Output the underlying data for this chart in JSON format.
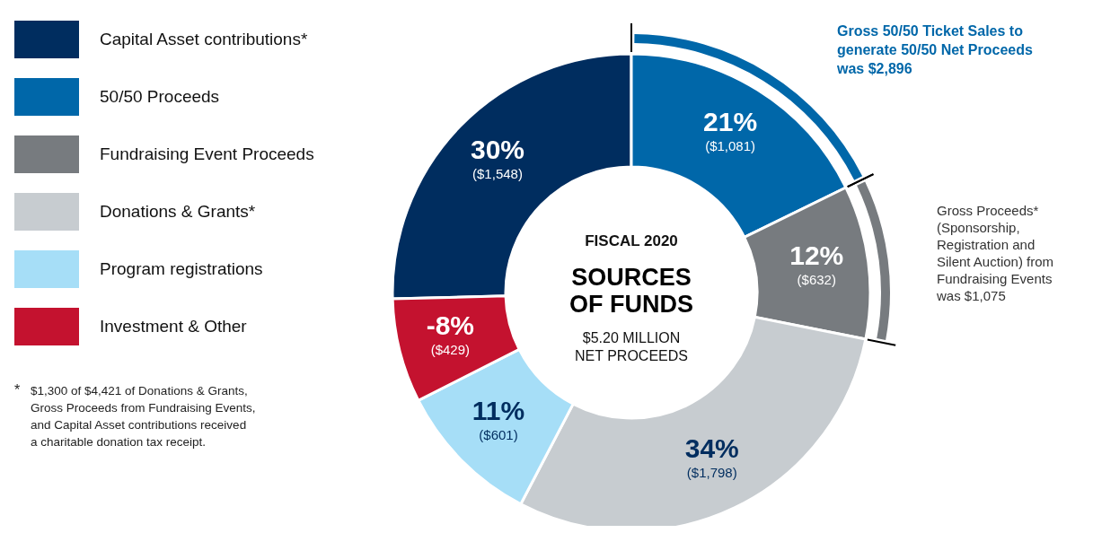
{
  "chart_data": {
    "type": "donut",
    "title": "SOURCES\nOF FUNDS",
    "subtitle": "FISCAL 2020",
    "categories": [
      "Capital Asset contributions*",
      "50/50 Proceeds",
      "Fundraising Event Proceeds",
      "Donations & Grants*",
      "Program registrations",
      "Investment & Other"
    ],
    "values": [
      1548,
      1081,
      632,
      1798,
      601,
      429
    ],
    "value_labels": [
      "30%\n($1,548)",
      "21%\n($1,081)",
      "12%\n($632)",
      "34%\n($1,798)",
      "11%\n($601)",
      "-8%\n($429)"
    ],
    "colors": [
      "#002d5f",
      "#0067a9",
      "#777b7f",
      "#c7ccd0",
      "#a6def7",
      "#c4122f"
    ],
    "legend": "left",
    "annotations": [
      "$5.20 MILLION\nNET PROCEEDS",
      "Gross 50/50 Ticket Sales to\ngenerate 50/50 Net Proceeds\nwas $2,896",
      "Gross Proceeds*\n(Sponsorship,\nRegistration and\nSilent Auction) from\nFundraising Events\nwas $1,075",
      "*\t$1,300 of $4,421 of Donations & Grants,\nGross Proceeds from Fundraising Events,\nand Capital Asset contributions received\na charitable donation tax receipt."
    ]
  }
}
